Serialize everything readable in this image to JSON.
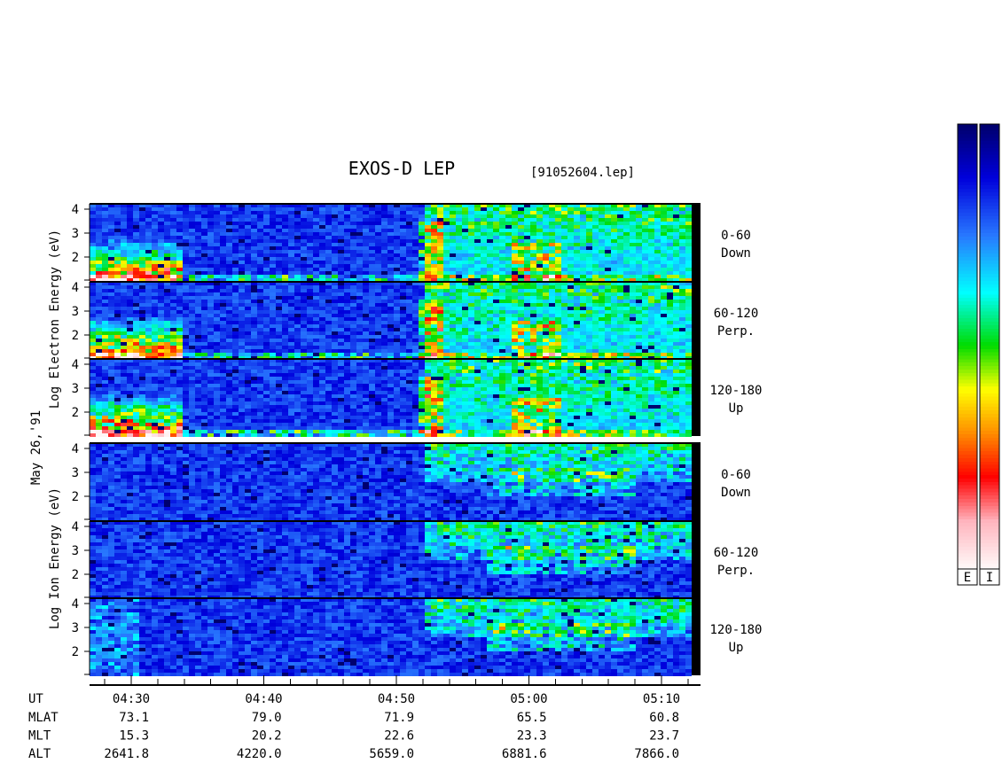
{
  "title": "EXOS-D LEP",
  "file": "[91052604.lep]",
  "date_label": "May 26,'91",
  "electron_axis_label": "Log  Electron  Energy  (eV)",
  "ion_axis_label": "Log  Ion  Energy  (eV)",
  "ylim": [
    1,
    4.22
  ],
  "yticks": [
    2,
    3,
    4
  ],
  "panels": [
    {
      "species": "electron",
      "label": [
        "0-60",
        "Down"
      ]
    },
    {
      "species": "electron",
      "label": [
        "60-120",
        "Perp."
      ]
    },
    {
      "species": "electron",
      "label": [
        "120-180",
        "Up"
      ]
    },
    {
      "species": "ion",
      "label": [
        "0-60",
        "Down"
      ]
    },
    {
      "species": "ion",
      "label": [
        "60-120",
        "Perp."
      ]
    },
    {
      "species": "ion",
      "label": [
        "120-180",
        "Up"
      ]
    }
  ],
  "orbit_table": {
    "UT": [
      "04:30",
      "04:40",
      "04:50",
      "05:00",
      "05:10"
    ],
    "rows": [
      {
        "name": "MLAT",
        "values": [
          "73.1",
          "79.0",
          "71.9",
          "65.5",
          "60.8"
        ]
      },
      {
        "name": "MLT",
        "values": [
          "15.3",
          "20.2",
          "22.6",
          "23.3",
          "23.7"
        ]
      },
      {
        "name": "ALT",
        "values": [
          "2641.8",
          "4220.0",
          "5659.0",
          "6881.6",
          "7866.0"
        ]
      }
    ],
    "ut_label": "UT"
  },
  "colorbars": [
    "E",
    "I"
  ]
}
